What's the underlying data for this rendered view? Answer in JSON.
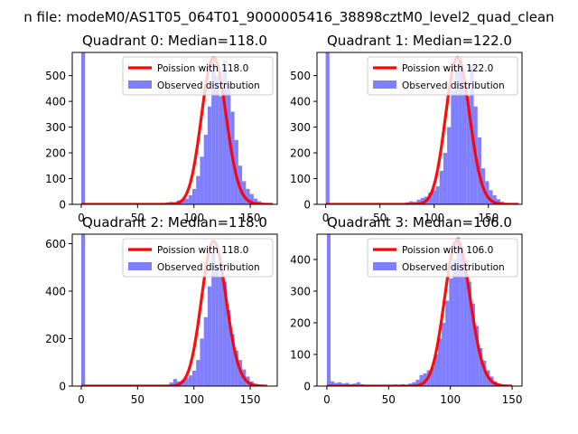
{
  "figure": {
    "suptitle": "n file: modeM0/AS1T05_064T01_9000005416_38898cztM0_level2_quad_clean"
  },
  "chart_data": [
    {
      "type": "bar",
      "title": "Quadrant 0: Median=118.0",
      "median": 118.0,
      "xlim": [
        -8,
        174
      ],
      "ylim": [
        0,
        590
      ],
      "xticks": [
        0,
        50,
        100,
        150
      ],
      "yticks": [
        0,
        100,
        200,
        300,
        400,
        500
      ],
      "legend": {
        "placement": "upper right",
        "entries": [
          "Poission with 118.0",
          "Observed distribution"
        ]
      },
      "hist": {
        "name": "Observed distribution",
        "color": "#7f7fff",
        "bin_width": 3.4,
        "bins": [
          [
            0,
            590
          ],
          [
            68,
            4
          ],
          [
            71.4,
            5
          ],
          [
            74.8,
            8
          ],
          [
            78.2,
            10
          ],
          [
            81.6,
            8
          ],
          [
            85,
            15
          ],
          [
            88.4,
            18
          ],
          [
            91.8,
            22
          ],
          [
            95.2,
            35
          ],
          [
            98.6,
            60
          ],
          [
            102,
            110
          ],
          [
            105.4,
            185
          ],
          [
            108.8,
            270
          ],
          [
            112.2,
            380
          ],
          [
            115.6,
            560
          ],
          [
            119,
            500
          ],
          [
            122.4,
            420
          ],
          [
            125.8,
            560
          ],
          [
            129.2,
            470
          ],
          [
            132.6,
            360
          ],
          [
            136,
            250
          ],
          [
            139.4,
            150
          ],
          [
            142.8,
            90
          ],
          [
            146.2,
            60
          ],
          [
            149.6,
            40
          ],
          [
            153,
            22
          ],
          [
            156.4,
            12
          ],
          [
            159.8,
            6
          ],
          [
            163.2,
            4
          ]
        ]
      },
      "fit": {
        "name": "Poission with 118.0",
        "color": "#ff0000",
        "lambda": 118.0,
        "scale": 570,
        "x_range": [
          0,
          170
        ]
      }
    },
    {
      "type": "bar",
      "title": "Quadrant 1: Median=122.0",
      "median": 122.0,
      "xlim": [
        -8,
        181
      ],
      "ylim": [
        0,
        590
      ],
      "xticks": [
        0,
        50,
        100,
        150
      ],
      "yticks": [
        0,
        100,
        200,
        300,
        400,
        500
      ],
      "legend": {
        "placement": "upper right",
        "entries": [
          "Poission with 122.0",
          "Observed distribution"
        ]
      },
      "hist": {
        "name": "Observed distribution",
        "color": "#7f7fff",
        "bin_width": 3.5,
        "bins": [
          [
            0,
            590
          ],
          [
            70,
            5
          ],
          [
            73.5,
            8
          ],
          [
            77,
            12
          ],
          [
            80.5,
            10
          ],
          [
            84,
            18
          ],
          [
            87.5,
            25
          ],
          [
            91,
            30
          ],
          [
            94.5,
            45
          ],
          [
            98,
            55
          ],
          [
            101.5,
            70
          ],
          [
            105,
            130
          ],
          [
            108.5,
            200
          ],
          [
            112,
            300
          ],
          [
            115.5,
            440
          ],
          [
            119,
            520
          ],
          [
            122.5,
            560
          ],
          [
            126,
            480
          ],
          [
            129.5,
            420
          ],
          [
            133,
            540
          ],
          [
            136.5,
            380
          ],
          [
            140,
            260
          ],
          [
            143.5,
            140
          ],
          [
            147,
            90
          ],
          [
            150.5,
            55
          ],
          [
            154,
            35
          ],
          [
            157.5,
            20
          ],
          [
            161,
            10
          ],
          [
            164.5,
            5
          ]
        ]
      },
      "fit": {
        "name": "Poission with 122.0",
        "color": "#ff0000",
        "lambda": 122.0,
        "scale": 570,
        "x_range": [
          0,
          178
        ]
      }
    },
    {
      "type": "bar",
      "title": "Quadrant 2: Median=118.0",
      "median": 118.0,
      "xlim": [
        -8,
        174
      ],
      "ylim": [
        0,
        640
      ],
      "xticks": [
        0,
        50,
        100,
        150
      ],
      "yticks": [
        0,
        200,
        400,
        600
      ],
      "legend": {
        "placement": "upper right",
        "entries": [
          "Poission with 118.0",
          "Observed distribution"
        ]
      },
      "hist": {
        "name": "Observed distribution",
        "color": "#7f7fff",
        "bin_width": 3.4,
        "bins": [
          [
            0,
            640
          ],
          [
            71.4,
            5
          ],
          [
            74.8,
            6
          ],
          [
            78.2,
            15
          ],
          [
            81.6,
            30
          ],
          [
            85,
            20
          ],
          [
            88.4,
            25
          ],
          [
            91.8,
            35
          ],
          [
            95.2,
            45
          ],
          [
            98.6,
            65
          ],
          [
            102,
            110
          ],
          [
            105.4,
            200
          ],
          [
            108.8,
            290
          ],
          [
            112.2,
            420
          ],
          [
            115.6,
            560
          ],
          [
            119,
            500
          ],
          [
            122.4,
            460
          ],
          [
            125.8,
            440
          ],
          [
            129.2,
            320
          ],
          [
            132.6,
            220
          ],
          [
            136,
            150
          ],
          [
            139.4,
            110
          ],
          [
            142.8,
            70
          ],
          [
            146.2,
            40
          ],
          [
            149.6,
            20
          ],
          [
            153,
            10
          ],
          [
            156.4,
            5
          ]
        ]
      },
      "fit": {
        "name": "Poission with 118.0",
        "color": "#ff0000",
        "lambda": 118.0,
        "scale": 610,
        "x_range": [
          0,
          165
        ]
      }
    },
    {
      "type": "bar",
      "title": "Quadrant 3: Median=106.0",
      "median": 106.0,
      "xlim": [
        -8,
        158
      ],
      "ylim": [
        0,
        480
      ],
      "xticks": [
        0,
        50,
        100,
        150
      ],
      "yticks": [
        0,
        100,
        200,
        300,
        400
      ],
      "legend": {
        "placement": "upper right",
        "entries": [
          "Poission with 106.0",
          "Observed distribution"
        ]
      },
      "hist": {
        "name": "Observed distribution",
        "color": "#7f7fff",
        "bin_width": 3,
        "bins": [
          [
            0,
            480
          ],
          [
            3,
            15
          ],
          [
            6,
            10
          ],
          [
            9,
            12
          ],
          [
            12,
            8
          ],
          [
            15,
            10
          ],
          [
            18,
            6
          ],
          [
            21,
            8
          ],
          [
            24,
            12
          ],
          [
            27,
            6
          ],
          [
            30,
            4
          ],
          [
            36,
            3
          ],
          [
            45,
            4
          ],
          [
            54,
            5
          ],
          [
            60,
            6
          ],
          [
            63,
            4
          ],
          [
            66,
            8
          ],
          [
            69,
            12
          ],
          [
            72,
            20
          ],
          [
            75,
            35
          ],
          [
            78,
            40
          ],
          [
            81,
            50
          ],
          [
            84,
            60
          ],
          [
            87,
            100
          ],
          [
            90,
            150
          ],
          [
            93,
            200
          ],
          [
            96,
            270
          ],
          [
            99,
            340
          ],
          [
            102,
            400
          ],
          [
            105,
            470
          ],
          [
            108,
            440
          ],
          [
            111,
            400
          ],
          [
            114,
            330
          ],
          [
            117,
            260
          ],
          [
            120,
            190
          ],
          [
            123,
            120
          ],
          [
            126,
            80
          ],
          [
            129,
            50
          ],
          [
            132,
            30
          ],
          [
            135,
            15
          ],
          [
            138,
            8
          ],
          [
            141,
            4
          ]
        ]
      },
      "fit": {
        "name": "Poission with 106.0",
        "color": "#ff0000",
        "lambda": 106.0,
        "scale": 460,
        "x_range": [
          0,
          150
        ]
      }
    }
  ]
}
